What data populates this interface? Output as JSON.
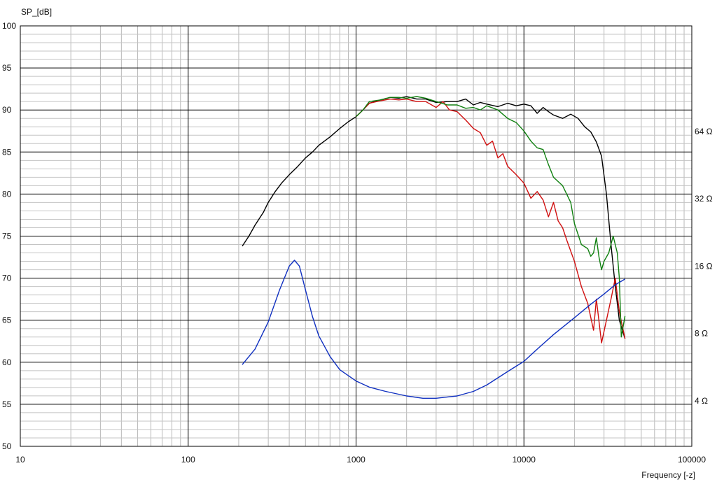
{
  "chart_data": {
    "type": "line",
    "ylabel": "SP_[dB]",
    "xlabel": "Frequency [-z]",
    "x_scale": "log",
    "xlim": [
      10,
      100000
    ],
    "ylim": [
      50,
      100
    ],
    "y2_scale": "log",
    "y2lim": [
      2.5,
      190
    ],
    "grid": true,
    "x_ticks": [
      {
        "value": 10,
        "label": "10"
      },
      {
        "value": 100,
        "label": "100"
      },
      {
        "value": 1000,
        "label": "1000"
      },
      {
        "value": 10000,
        "label": "10000"
      },
      {
        "value": 100000,
        "label": "100000"
      }
    ],
    "y_ticks": [
      {
        "value": 100,
        "label": "100"
      },
      {
        "value": 95,
        "label": "95"
      },
      {
        "value": 90,
        "label": "90"
      },
      {
        "value": 85,
        "label": "85"
      },
      {
        "value": 80,
        "label": "80"
      },
      {
        "value": 75,
        "label": "75"
      },
      {
        "value": 70,
        "label": "70"
      },
      {
        "value": 65,
        "label": "65"
      },
      {
        "value": 60,
        "label": "60"
      },
      {
        "value": 55,
        "label": "55"
      },
      {
        "value": 50,
        "label": "50"
      }
    ],
    "y2_ticks": [
      {
        "value": 64,
        "label": "64 Ω"
      },
      {
        "value": 32,
        "label": "32 Ω"
      },
      {
        "value": 16,
        "label": "16 Ω"
      },
      {
        "value": 8,
        "label": "8 Ω"
      },
      {
        "value": 4,
        "label": "4 Ω"
      }
    ],
    "series": [
      {
        "color": "#000000",
        "axis": "spl",
        "x": [
          210,
          230,
          250,
          280,
          300,
          330,
          360,
          400,
          450,
          500,
          550,
          600,
          700,
          800,
          900,
          1000,
          1100,
          1200,
          1400,
          1600,
          1800,
          2000,
          2300,
          2600,
          3000,
          3500,
          4000,
          4500,
          5000,
          5500,
          6000,
          7000,
          8000,
          9000,
          10000,
          11000,
          12000,
          13000,
          14000,
          15000,
          17000,
          19000,
          21000,
          23000,
          25000,
          27000,
          29000,
          31000,
          33000,
          35000,
          37000,
          40000
        ],
        "y": [
          73.8,
          75.0,
          76.3,
          77.8,
          79.0,
          80.3,
          81.3,
          82.3,
          83.3,
          84.3,
          85.0,
          85.8,
          86.8,
          87.8,
          88.6,
          89.2,
          90.0,
          90.8,
          91.2,
          91.5,
          91.4,
          91.6,
          91.3,
          91.3,
          90.9,
          91.0,
          91.0,
          91.3,
          90.6,
          90.9,
          90.7,
          90.4,
          90.8,
          90.5,
          90.7,
          90.5,
          89.6,
          90.3,
          89.8,
          89.4,
          89.0,
          89.5,
          89.0,
          88.0,
          87.4,
          86.2,
          84.5,
          80.0,
          74.0,
          69.0,
          65.0,
          62.8
        ]
      },
      {
        "color": "#d01010",
        "axis": "spl",
        "x": [
          1000,
          1100,
          1200,
          1400,
          1600,
          1800,
          2000,
          2300,
          2600,
          3000,
          3300,
          3600,
          4000,
          4500,
          5000,
          5500,
          6000,
          6500,
          7000,
          7500,
          8000,
          9000,
          10000,
          11000,
          12000,
          13000,
          14000,
          15000,
          16000,
          17000,
          18000,
          20000,
          22000,
          24000,
          26000,
          27000,
          29000,
          31000,
          33000,
          35000,
          37000,
          40000
        ],
        "y": [
          89.2,
          90.0,
          90.8,
          91.1,
          91.3,
          91.2,
          91.3,
          91.0,
          91.0,
          90.3,
          91.0,
          90.0,
          89.8,
          88.8,
          87.8,
          87.3,
          85.8,
          86.3,
          84.3,
          84.8,
          83.3,
          82.3,
          81.3,
          79.5,
          80.3,
          79.3,
          77.3,
          79.0,
          76.8,
          76.0,
          74.5,
          72.0,
          69.0,
          67.0,
          63.8,
          67.5,
          62.3,
          65.0,
          67.5,
          70.0,
          66.0,
          62.8
        ]
      },
      {
        "color": "#108010",
        "axis": "spl",
        "x": [
          1000,
          1100,
          1200,
          1400,
          1600,
          1800,
          2000,
          2300,
          2600,
          3000,
          3500,
          4000,
          4500,
          5000,
          5500,
          6000,
          7000,
          8000,
          9000,
          10000,
          11000,
          12000,
          13000,
          14000,
          15000,
          17000,
          19000,
          20000,
          22000,
          24000,
          25000,
          26000,
          27000,
          28000,
          29000,
          30000,
          32000,
          34000,
          36000,
          37000,
          38000,
          40000
        ],
        "y": [
          89.2,
          90.0,
          91.0,
          91.2,
          91.5,
          91.5,
          91.4,
          91.6,
          91.4,
          91.0,
          90.6,
          90.6,
          90.2,
          90.3,
          90.0,
          90.5,
          90.0,
          89.0,
          88.5,
          87.5,
          86.3,
          85.5,
          85.3,
          83.5,
          82.0,
          81.0,
          79.0,
          76.5,
          74.0,
          73.5,
          72.6,
          73.0,
          74.8,
          72.5,
          71.0,
          72.0,
          73.0,
          75.0,
          73.0,
          70.0,
          63.0,
          65.5
        ]
      },
      {
        "color": "#1030c0",
        "axis": "impedance",
        "x": [
          210,
          250,
          300,
          350,
          400,
          430,
          460,
          500,
          550,
          600,
          700,
          800,
          1000,
          1200,
          1500,
          2000,
          2500,
          3000,
          4000,
          5000,
          6000,
          8000,
          10000,
          12000,
          15000,
          20000,
          25000,
          30000,
          35000,
          40000
        ],
        "y": [
          5.8,
          6.8,
          9.0,
          12.5,
          16.0,
          17.0,
          16.0,
          12.5,
          9.5,
          7.8,
          6.3,
          5.5,
          4.9,
          4.6,
          4.4,
          4.2,
          4.1,
          4.1,
          4.2,
          4.4,
          4.7,
          5.4,
          6.0,
          6.8,
          7.9,
          9.4,
          10.8,
          12.0,
          13.2,
          14.0
        ]
      }
    ]
  }
}
